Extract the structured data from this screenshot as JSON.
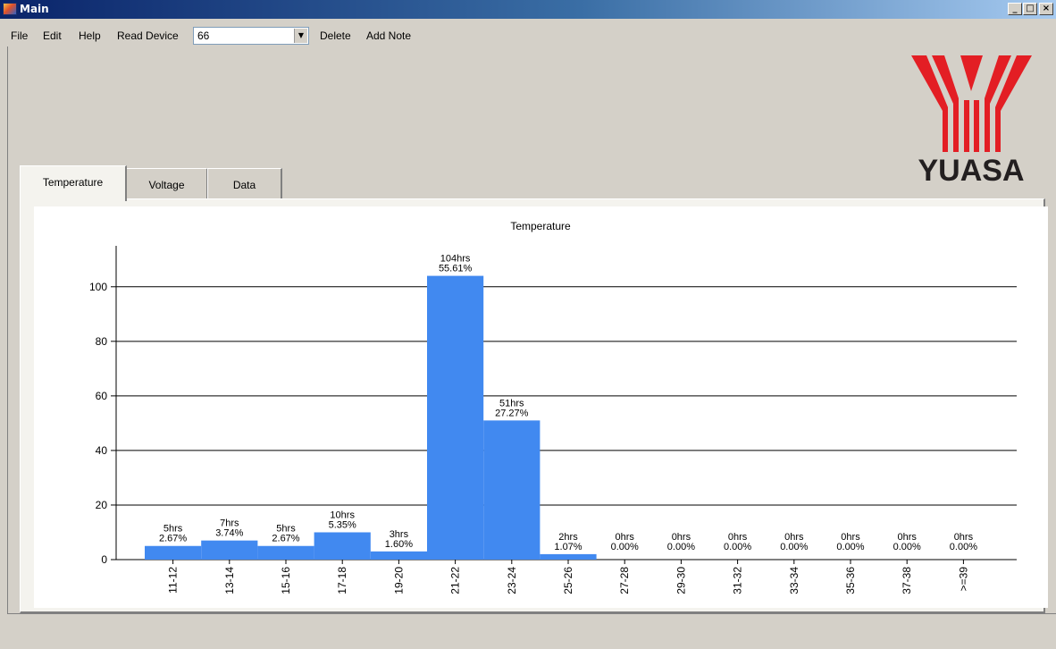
{
  "window": {
    "title": "Main"
  },
  "menu": {
    "file": "File",
    "edit": "Edit",
    "help": "Help",
    "read_device": "Read Device",
    "device_value": "66",
    "delete": "Delete",
    "add_note": "Add Note"
  },
  "logo": {
    "text": "YUASA",
    "color": "#e31e24"
  },
  "tabs": [
    {
      "label": "Temperature",
      "active": true
    },
    {
      "label": "Voltage",
      "active": false
    },
    {
      "label": "Data",
      "active": false
    }
  ],
  "chart_data": {
    "type": "bar",
    "title": "Temperature",
    "categories": [
      "11-12",
      "13-14",
      "15-16",
      "17-18",
      "19-20",
      "21-22",
      "23-24",
      "25-26",
      "27-28",
      "29-30",
      "31-32",
      "33-34",
      "35-36",
      "37-38",
      ">=39"
    ],
    "values": [
      5,
      7,
      5,
      10,
      3,
      104,
      51,
      2,
      0,
      0,
      0,
      0,
      0,
      0,
      0
    ],
    "labels_hours": [
      "5hrs",
      "7hrs",
      "5hrs",
      "10hrs",
      "3hrs",
      "104hrs",
      "51hrs",
      "2hrs",
      "0hrs",
      "0hrs",
      "0hrs",
      "0hrs",
      "0hrs",
      "0hrs",
      "0hrs"
    ],
    "labels_percent": [
      "2.67%",
      "3.74%",
      "2.67%",
      "5.35%",
      "1.60%",
      "55.61%",
      "27.27%",
      "1.07%",
      "0.00%",
      "0.00%",
      "0.00%",
      "0.00%",
      "0.00%",
      "0.00%",
      "0.00%"
    ],
    "yticks": [
      0,
      20,
      40,
      60,
      80,
      100
    ],
    "ylim": [
      0,
      115
    ],
    "grid": true,
    "bar_color": "#4189f0"
  }
}
